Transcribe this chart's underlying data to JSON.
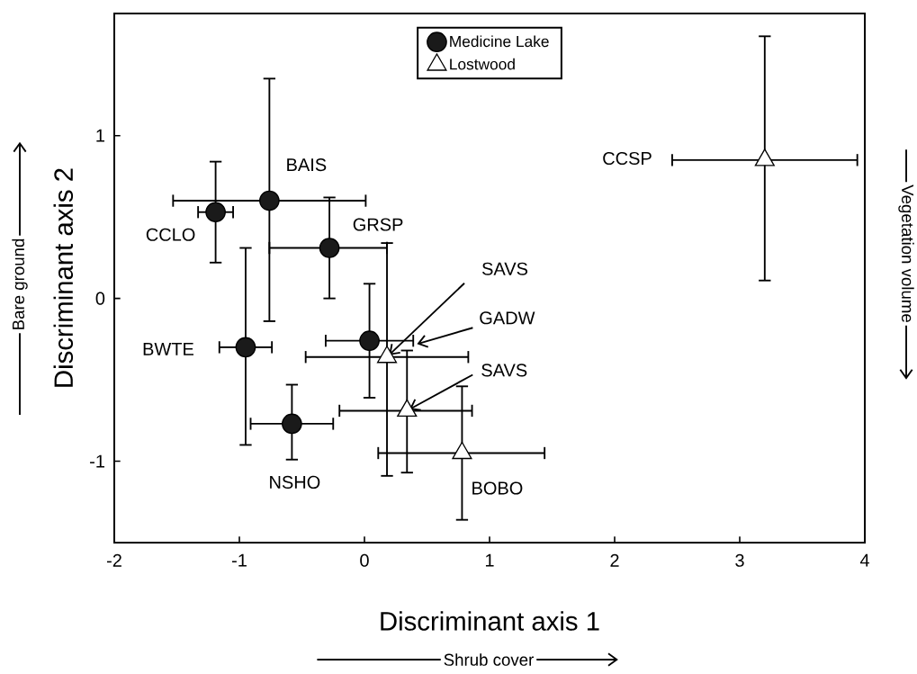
{
  "chart_data": {
    "type": "scatter",
    "xlabel": "Discriminant axis 1",
    "ylabel": "Discriminant axis 2",
    "xlim": [
      -2,
      4
    ],
    "ylim": [
      -1.5,
      1.75
    ],
    "xticks": [
      -2,
      -1,
      0,
      1,
      2,
      3,
      4
    ],
    "yticks": [
      -1,
      0,
      1
    ],
    "legend": "top",
    "series": [
      {
        "name": "Medicine Lake",
        "color": "#1a1a1a",
        "marker": "circle",
        "x": [
          -1.19,
          -0.76,
          -0.28,
          0.04,
          -0.95,
          -0.58
        ],
        "values": [
          0.53,
          0.6,
          0.31,
          -0.26,
          -0.3,
          -0.77
        ],
        "xerrors": [
          [
            -1.33,
            -1.05
          ],
          [
            -1.53,
            0.01
          ],
          [
            -0.76,
            0.18
          ],
          [
            -0.31,
            0.39
          ],
          [
            -1.16,
            -0.74
          ],
          [
            -0.91,
            -0.25
          ]
        ],
        "errors": [
          [
            0.22,
            0.84
          ],
          [
            -0.14,
            1.35
          ],
          [
            0.0,
            0.62
          ],
          [
            -0.61,
            0.09
          ],
          [
            -0.9,
            0.31
          ],
          [
            -0.99,
            -0.53
          ]
        ]
      },
      {
        "name": "Lostwood",
        "color": "#ffffff",
        "marker": "triangle",
        "x": [
          0.18,
          0.34,
          0.78,
          3.2
        ],
        "values": [
          -0.36,
          -0.69,
          -0.95,
          0.85
        ],
        "xerrors": [
          [
            -0.47,
            0.83
          ],
          [
            -0.2,
            0.86
          ],
          [
            0.11,
            1.44
          ],
          [
            2.46,
            3.94
          ]
        ],
        "errors": [
          [
            -1.09,
            0.34
          ],
          [
            -1.07,
            -0.32
          ],
          [
            -1.36,
            -0.54
          ],
          [
            0.11,
            1.61
          ]
        ]
      }
    ],
    "annotations": [
      {
        "text": "BAIS",
        "x": -0.76,
        "y": 0.6
      },
      {
        "text": "CCLO",
        "x": -1.19,
        "y": 0.53
      },
      {
        "text": "GRSP",
        "x": -0.28,
        "y": 0.31
      },
      {
        "text": "SAVS",
        "x": 0.18,
        "y": -0.36
      },
      {
        "text": "GADW",
        "x": 0.42,
        "y": -0.28
      },
      {
        "text": "SAVS",
        "x": 0.34,
        "y": -0.69
      },
      {
        "text": "BWTE",
        "x": -0.95,
        "y": -0.3
      },
      {
        "text": "NSHO",
        "x": -0.58,
        "y": -0.77
      },
      {
        "text": "BOBO",
        "x": 0.78,
        "y": -0.95
      },
      "CCSP",
      "Bare ground",
      "Vegetation volume",
      "Shrub cover"
    ]
  }
}
